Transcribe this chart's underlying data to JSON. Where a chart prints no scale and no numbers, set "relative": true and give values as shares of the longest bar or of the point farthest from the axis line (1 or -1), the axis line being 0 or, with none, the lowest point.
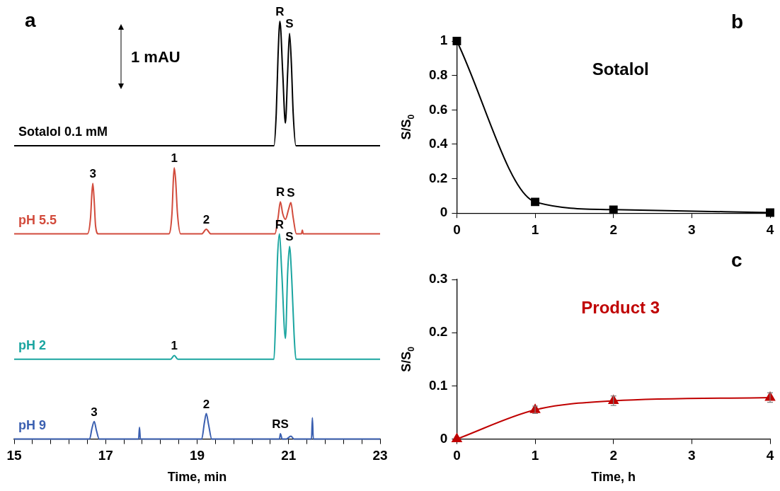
{
  "chart_data": [
    {
      "type": "line",
      "title": "a",
      "xlabel": "Time, min",
      "relative": true,
      "tick_labels": "x",
      "marker": "none",
      "grid": false,
      "legend": false,
      "xlim": [
        15,
        23
      ],
      "xticks": [
        15,
        {
          "value": 15.4,
          "label": null
        },
        {
          "value": 15.8,
          "label": null
        },
        {
          "value": 16.2,
          "label": null
        },
        {
          "value": 16.6,
          "label": null
        },
        17,
        {
          "value": 17.4,
          "label": null
        },
        {
          "value": 17.8,
          "label": null
        },
        {
          "value": 18.2,
          "label": null
        },
        {
          "value": 18.6,
          "label": null
        },
        19,
        {
          "value": 19.4,
          "label": null
        },
        {
          "value": 19.8,
          "label": null
        },
        {
          "value": 20.2,
          "label": null
        },
        {
          "value": 20.6,
          "label": null
        },
        21,
        {
          "value": 21.4,
          "label": null
        },
        {
          "value": 21.8,
          "label": null
        },
        {
          "value": 22.2,
          "label": null
        },
        {
          "value": 22.6,
          "label": null
        },
        23
      ],
      "series": [
        {
          "name": "Sotalol 0.1 mM",
          "color": "#000000",
          "x": [
            15,
            20.68,
            20.73,
            20.77,
            20.81,
            20.87,
            20.93,
            20.98,
            21.02,
            21.06,
            21.1,
            21.16,
            23
          ],
          "values": [
            0.702,
            0.702,
            0.78,
            0.92,
            1.0,
            0.88,
            0.756,
            0.88,
            0.971,
            0.9,
            0.78,
            0.702,
            0.702
          ]
        },
        {
          "name": "pH 5.5",
          "color": "#d24b3c",
          "x": [
            15,
            16.6,
            16.67,
            16.7,
            16.72,
            16.75,
            16.78,
            16.84,
            18.38,
            18.45,
            18.48,
            18.5,
            18.53,
            18.57,
            18.64,
            19.1,
            19.2,
            19.3,
            20.7,
            20.77,
            20.82,
            20.87,
            20.93,
            21.0,
            21.05,
            21.1,
            21.17,
            21.28,
            21.3,
            21.32,
            23
          ],
          "values": [
            0.491,
            0.491,
            0.53,
            0.59,
            0.612,
            0.57,
            0.51,
            0.491,
            0.491,
            0.54,
            0.62,
            0.649,
            0.62,
            0.54,
            0.491,
            0.491,
            0.502,
            0.491,
            0.491,
            0.53,
            0.568,
            0.54,
            0.526,
            0.55,
            0.566,
            0.53,
            0.491,
            0.491,
            0.5,
            0.491,
            0.491
          ]
        },
        {
          "name": "pH 2",
          "color": "#1aa5a0",
          "x": [
            15,
            18.42,
            18.5,
            18.58,
            20.68,
            20.72,
            20.76,
            20.8,
            20.85,
            20.93,
            20.98,
            21.02,
            21.07,
            21.12,
            21.16,
            23
          ],
          "values": [
            0.191,
            0.191,
            0.2,
            0.191,
            0.191,
            0.3,
            0.44,
            0.491,
            0.4,
            0.241,
            0.4,
            0.461,
            0.38,
            0.25,
            0.191,
            0.191
          ]
        },
        {
          "name": "pH 9",
          "color": "#3a5fb0",
          "x": [
            15,
            16.65,
            16.7,
            16.75,
            16.8,
            16.86,
            17.72,
            17.74,
            17.76,
            19.1,
            19.16,
            19.2,
            19.25,
            19.32,
            20.8,
            20.82,
            20.86,
            20.95,
            21.05,
            21.12,
            21.5,
            21.52,
            21.54,
            23
          ],
          "values": [
            0,
            0,
            0.025,
            0.042,
            0.02,
            0,
            0,
            0.028,
            0,
            0,
            0.04,
            0.061,
            0.035,
            0,
            0,
            0.013,
            0,
            0,
            0.007,
            0,
            0,
            0.051,
            0,
            0
          ]
        }
      ],
      "annotations": [
        "1 mAU",
        {
          "text": "R",
          "x": 20.81,
          "y": 1.0
        },
        {
          "text": "S",
          "x": 21.02,
          "y": 0.971
        },
        {
          "text": "3",
          "x": 16.72,
          "y": 0.612
        },
        {
          "text": "1",
          "x": 18.5,
          "y": 0.649
        },
        {
          "text": "2",
          "x": 19.2,
          "y": 0.502
        },
        {
          "text": "R",
          "x": 20.82,
          "y": 0.568
        },
        {
          "text": "S",
          "x": 21.05,
          "y": 0.566
        },
        {
          "text": "R",
          "x": 20.8,
          "y": 0.491
        },
        {
          "text": "S",
          "x": 21.02,
          "y": 0.461
        },
        {
          "text": "1",
          "x": 18.5,
          "y": 0.2
        },
        {
          "text": "3",
          "x": 16.75,
          "y": 0.042
        },
        {
          "text": "2",
          "x": 19.2,
          "y": 0.061
        },
        {
          "text": "RS",
          "x": 20.82,
          "y": 0.013
        }
      ]
    },
    {
      "type": "line",
      "title": "b",
      "subtitle": "Sotalol",
      "ylabel": "S/S$_{0}$",
      "marker": "square",
      "grid": false,
      "legend": false,
      "x": [
        0,
        1,
        2,
        4
      ],
      "xlim": [
        0,
        4
      ],
      "xticks": [
        0,
        1,
        2,
        3,
        4
      ],
      "ylim": [
        0,
        1
      ],
      "yticks": [
        0,
        0.2,
        0.4,
        0.6,
        0.8,
        1
      ],
      "series": [
        {
          "color": "#000000",
          "values": [
            1,
            0.065,
            0.02,
            0.003
          ]
        }
      ]
    },
    {
      "type": "line",
      "title": "c",
      "subtitle": "Product 3",
      "xlabel": "Time, h",
      "ylabel": "S/S$_{0}$",
      "marker": "triangle",
      "grid": false,
      "legend": false,
      "x": [
        0,
        1,
        2,
        4
      ],
      "xlim": [
        0,
        4
      ],
      "xticks": [
        0,
        1,
        2,
        3,
        4
      ],
      "ylim": [
        0,
        0.3
      ],
      "yticks": [
        0,
        0.1,
        0.2,
        0.3
      ],
      "series": [
        {
          "color": "#c00000",
          "values": [
            0,
            0.055,
            0.072,
            0.078
          ],
          "errors": [
            null,
            0.007,
            0.009,
            0.009
          ]
        }
      ]
    }
  ]
}
